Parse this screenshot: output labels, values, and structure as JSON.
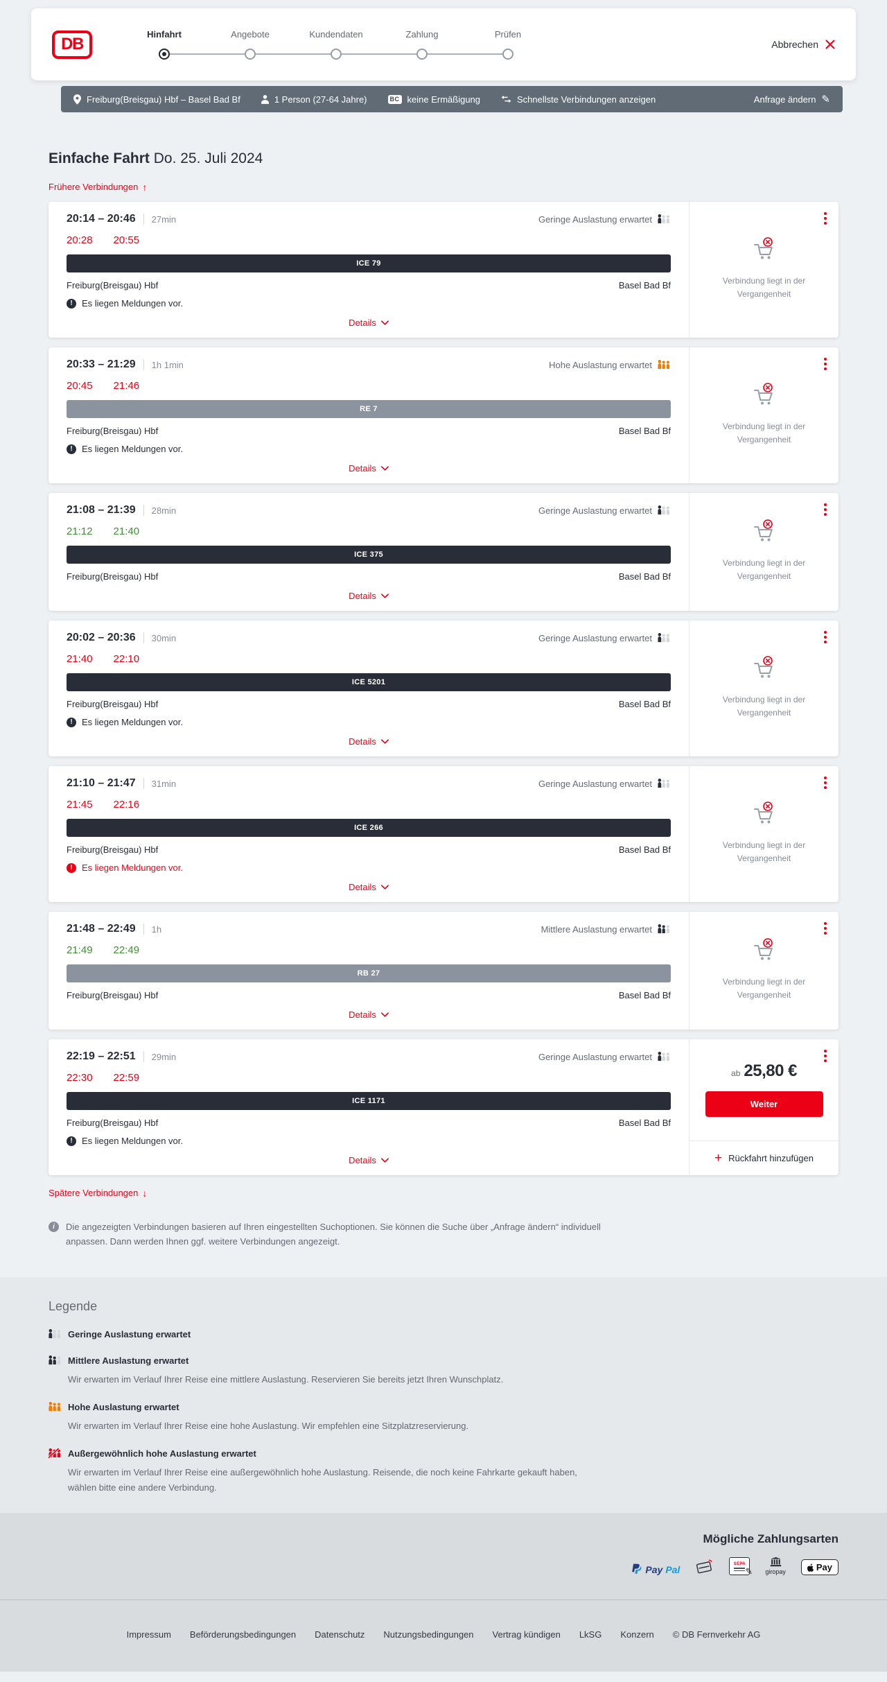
{
  "header": {
    "logo_text": "DB",
    "steps": [
      {
        "label": "Hinfahrt",
        "active": true
      },
      {
        "label": "Angebote",
        "active": false
      },
      {
        "label": "Kundendaten",
        "active": false
      },
      {
        "label": "Zahlung",
        "active": false
      },
      {
        "label": "Prüfen",
        "active": false
      }
    ],
    "cancel_label": "Abbrechen"
  },
  "summary_bar": {
    "route": "Freiburg(Breisgau) Hbf – Basel Bad Bf",
    "passengers": "1 Person (27-64 Jahre)",
    "bahncard_badge": "BC",
    "discount": "keine Ermäßigung",
    "connection_filter": "Schnellste Verbindungen anzeigen",
    "edit_label": "Anfrage ändern"
  },
  "page": {
    "title": "Einfache Fahrt",
    "date": "Do. 25. Juli 2024",
    "earlier_link": "Frühere Verbindungen",
    "later_link": "Spätere Verbindungen",
    "info_note": "Die angezeigten Verbindungen basieren auf Ihren eingestellten Suchoptionen. Sie können die Suche über „Anfrage ändern“ individuell anpassen. Dann werden Ihnen ggf. weitere Verbindungen angezeigt."
  },
  "icons": {
    "arrow_up": "↑",
    "arrow_down": "↓",
    "plus": "+",
    "exclamation": "!",
    "info": "i",
    "pencil": "✎"
  },
  "connections": [
    {
      "time_range": "20:14 – 20:46",
      "duration": "27min",
      "occupancy_label": "Geringe Auslastung erwartet",
      "occupancy_level": "low",
      "actual_departure": "20:28",
      "actual_arrival": "20:55",
      "times_status": "delayed",
      "train_label": "ICE 79",
      "train_style": "dark",
      "origin": "Freiburg(Breisgau) Hbf",
      "destination": "Basel Bad Bf",
      "notice": "Es liegen Meldungen vor.",
      "notice_style": "default",
      "details_label": "Details",
      "panel": {
        "type": "past",
        "message": "Verbindung liegt in der Vergangenheit"
      }
    },
    {
      "time_range": "20:33 – 21:29",
      "duration": "1h 1min",
      "occupancy_label": "Hohe Auslastung erwartet",
      "occupancy_level": "high",
      "actual_departure": "20:45",
      "actual_arrival": "21:46",
      "times_status": "delayed",
      "train_label": "RE 7",
      "train_style": "gray",
      "origin": "Freiburg(Breisgau) Hbf",
      "destination": "Basel Bad Bf",
      "notice": "Es liegen Meldungen vor.",
      "notice_style": "default",
      "details_label": "Details",
      "panel": {
        "type": "past",
        "message": "Verbindung liegt in der Vergangenheit"
      }
    },
    {
      "time_range": "21:08 – 21:39",
      "duration": "28min",
      "occupancy_label": "Geringe Auslastung erwartet",
      "occupancy_level": "low",
      "actual_departure": "21:12",
      "actual_arrival": "21:40",
      "times_status": "ontime",
      "train_label": "ICE 375",
      "train_style": "dark",
      "origin": "Freiburg(Breisgau) Hbf",
      "destination": "Basel Bad Bf",
      "notice": "",
      "notice_style": "default",
      "details_label": "Details",
      "panel": {
        "type": "past",
        "message": "Verbindung liegt in der Vergangenheit"
      }
    },
    {
      "time_range": "20:02 – 20:36",
      "duration": "30min",
      "occupancy_label": "Geringe Auslastung erwartet",
      "occupancy_level": "low",
      "actual_departure": "21:40",
      "actual_arrival": "22:10",
      "times_status": "delayed",
      "train_label": "ICE 5201",
      "train_style": "dark",
      "origin": "Freiburg(Breisgau) Hbf",
      "destination": "Basel Bad Bf",
      "notice": "Es liegen Meldungen vor.",
      "notice_style": "default",
      "details_label": "Details",
      "panel": {
        "type": "past",
        "message": "Verbindung liegt in der Vergangenheit"
      }
    },
    {
      "time_range": "21:10 – 21:47",
      "duration": "31min",
      "occupancy_label": "Geringe Auslastung erwartet",
      "occupancy_level": "low",
      "actual_departure": "21:45",
      "actual_arrival": "22:16",
      "times_status": "delayed",
      "train_label": "ICE 266",
      "train_style": "dark",
      "origin": "Freiburg(Breisgau) Hbf",
      "destination": "Basel Bad Bf",
      "notice": "Es liegen Meldungen vor.",
      "notice_style": "alert",
      "details_label": "Details",
      "panel": {
        "type": "past",
        "message": "Verbindung liegt in der Vergangenheit"
      }
    },
    {
      "time_range": "21:48 – 22:49",
      "duration": "1h",
      "occupancy_label": "Mittlere Auslastung erwartet",
      "occupancy_level": "mid",
      "actual_departure": "21:49",
      "actual_arrival": "22:49",
      "times_status": "ontime",
      "train_label": "RB 27",
      "train_style": "gray",
      "origin": "Freiburg(Breisgau) Hbf",
      "destination": "Basel Bad Bf",
      "notice": "",
      "notice_style": "default",
      "details_label": "Details",
      "panel": {
        "type": "past",
        "message": "Verbindung liegt in der Vergangenheit"
      }
    },
    {
      "time_range": "22:19 – 22:51",
      "duration": "29min",
      "occupancy_label": "Geringe Auslastung erwartet",
      "occupancy_level": "low",
      "actual_departure": "22:30",
      "actual_arrival": "22:59",
      "times_status": "delayed",
      "train_label": "ICE 1171",
      "train_style": "dark",
      "origin": "Freiburg(Breisgau) Hbf",
      "destination": "Basel Bad Bf",
      "notice": "Es liegen Meldungen vor.",
      "notice_style": "default",
      "details_label": "Details",
      "panel": {
        "type": "offer",
        "price_prefix": "ab",
        "price": "25,80 €",
        "cta_label": "Weiter",
        "add_return_label": "Rückfahrt hinzufügen"
      }
    }
  ],
  "legend": {
    "heading": "Legende",
    "items": [
      {
        "title": "Geringe Auslastung erwartet",
        "level": "low",
        "description": ""
      },
      {
        "title": "Mittlere Auslastung erwartet",
        "level": "mid",
        "description": "Wir erwarten im Verlauf Ihrer Reise eine mittlere Auslastung. Reservieren Sie bereits jetzt Ihren Wunschplatz."
      },
      {
        "title": "Hohe Auslastung erwartet",
        "level": "high",
        "description": "Wir erwarten im Verlauf Ihrer Reise eine hohe Auslastung. Wir empfehlen eine Sitzplatzreservierung."
      },
      {
        "title": "Außergewöhnlich hohe Auslastung erwartet",
        "level": "extreme",
        "description": "Wir erwarten im Verlauf Ihrer Reise eine außergewöhnlich hohe Auslastung. Reisende, die noch keine Fahrkarte gekauft haben, wählen bitte eine andere Verbindung."
      }
    ]
  },
  "payment": {
    "heading": "Mögliche Zahlungsarten",
    "methods": [
      "PayPal",
      "Kreditkarte",
      "SEPA-Lastschrift",
      "giropay",
      "Apple Pay"
    ],
    "paypal_word1": "Pay",
    "paypal_word2": "Pal",
    "sepa_label": "SEPA",
    "giropay_caption": "giropay",
    "applepay_word": "Pay"
  },
  "footer": {
    "links": [
      "Impressum",
      "Beförderungsbedingungen",
      "Datenschutz",
      "Nutzungsbedingungen",
      "Vertrag kündigen",
      "LkSG",
      "Konzern"
    ],
    "copyright": "© DB Fernverkehr AG"
  },
  "colors": {
    "brand_red": "#ec0016",
    "ink": "#282d37",
    "delay_red": "#ec0016",
    "ontime_green": "#3f8f34",
    "occupancy_orange": "#f57c00",
    "summary_bar_bg": "#606b76",
    "page_bg": "#eef1f4"
  }
}
